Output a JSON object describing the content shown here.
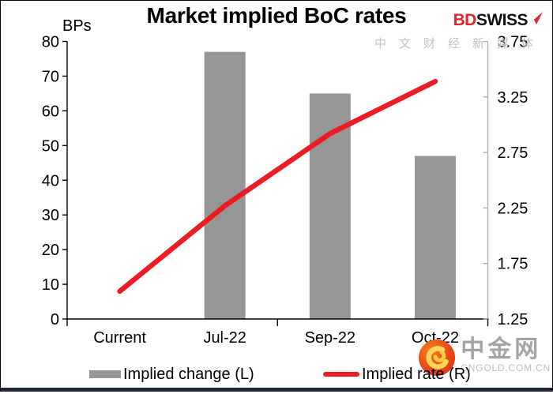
{
  "header": {
    "units_label": "BPs",
    "title": "Market implied BoC rates",
    "brand": {
      "bd": "BD",
      "swiss": "SWISS"
    }
  },
  "chart_data": {
    "type": "bar",
    "title": "Market implied BoC rates",
    "categories": [
      "Current",
      "Jul-22",
      "Sep-22",
      "Oct-22"
    ],
    "series": [
      {
        "name": "Implied change (L)",
        "kind": "bar",
        "axis": "left",
        "color": "#969696",
        "values": [
          null,
          77,
          65,
          47
        ]
      },
      {
        "name": "Implied rate (R)",
        "kind": "line",
        "axis": "right",
        "color": "#ED1C24",
        "values": [
          1.5,
          2.27,
          2.92,
          3.39
        ]
      }
    ],
    "left_axis": {
      "label": "BPs",
      "range": [
        0,
        80
      ],
      "ticks": [
        0,
        10,
        20,
        30,
        40,
        50,
        60,
        70,
        80
      ]
    },
    "right_axis": {
      "range": [
        1.25,
        3.75
      ],
      "ticks": [
        1.25,
        1.75,
        2.25,
        2.75,
        3.25,
        3.75
      ]
    },
    "grid": false,
    "legend_position": "bottom"
  },
  "watermark": {
    "name": "中金网",
    "domain": "CNGOLD.COM.CN",
    "slogan": "中文财经新媒体"
  },
  "colors": {
    "bar": "#969696",
    "line": "#ED1C24",
    "axis_black": "#000000",
    "right_axis_gray": "#ABABAB",
    "brand_red": "#E32329",
    "watermark_gray": "#A3A3A3",
    "footer_bar": "#20242e"
  }
}
